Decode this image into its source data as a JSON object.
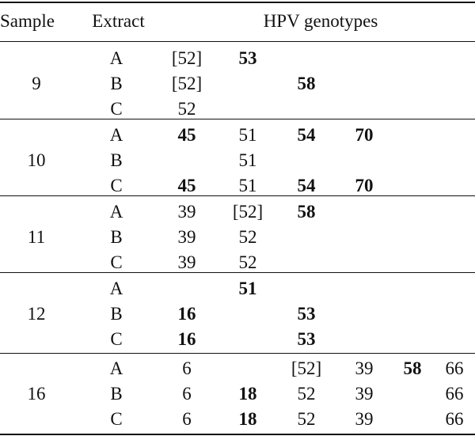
{
  "header": {
    "sample": "Sample",
    "extract": "Extract",
    "genotypes": "HPV genotypes"
  },
  "groups": [
    {
      "sample": "9",
      "rows": [
        {
          "extract": "A",
          "cells": [
            {
              "v": "[52]",
              "bold": false
            },
            {
              "v": "53",
              "bold": true
            },
            {
              "v": "",
              "bold": false
            },
            {
              "v": "",
              "bold": false
            },
            {
              "v": "",
              "bold": false
            },
            {
              "v": "",
              "bold": false
            }
          ]
        },
        {
          "extract": "B",
          "cells": [
            {
              "v": "[52]",
              "bold": false
            },
            {
              "v": "",
              "bold": false
            },
            {
              "v": "58",
              "bold": true
            },
            {
              "v": "",
              "bold": false
            },
            {
              "v": "",
              "bold": false
            },
            {
              "v": "",
              "bold": false
            }
          ]
        },
        {
          "extract": "C",
          "cells": [
            {
              "v": "52",
              "bold": false
            },
            {
              "v": "",
              "bold": false
            },
            {
              "v": "",
              "bold": false
            },
            {
              "v": "",
              "bold": false
            },
            {
              "v": "",
              "bold": false
            },
            {
              "v": "",
              "bold": false
            }
          ]
        }
      ]
    },
    {
      "sample": "10",
      "rows": [
        {
          "extract": "A",
          "cells": [
            {
              "v": "45",
              "bold": true
            },
            {
              "v": "51",
              "bold": false
            },
            {
              "v": "54",
              "bold": true
            },
            {
              "v": "70",
              "bold": true
            },
            {
              "v": "",
              "bold": false
            },
            {
              "v": "",
              "bold": false
            }
          ]
        },
        {
          "extract": "B",
          "cells": [
            {
              "v": "",
              "bold": false
            },
            {
              "v": "51",
              "bold": false
            },
            {
              "v": "",
              "bold": false
            },
            {
              "v": "",
              "bold": false
            },
            {
              "v": "",
              "bold": false
            },
            {
              "v": "",
              "bold": false
            }
          ]
        },
        {
          "extract": "C",
          "cells": [
            {
              "v": "45",
              "bold": true
            },
            {
              "v": "51",
              "bold": false
            },
            {
              "v": "54",
              "bold": true
            },
            {
              "v": "70",
              "bold": true
            },
            {
              "v": "",
              "bold": false
            },
            {
              "v": "",
              "bold": false
            }
          ]
        }
      ]
    },
    {
      "sample": "11",
      "rows": [
        {
          "extract": "A",
          "cells": [
            {
              "v": "39",
              "bold": false
            },
            {
              "v": "[52]",
              "bold": false
            },
            {
              "v": "58",
              "bold": true
            },
            {
              "v": "",
              "bold": false
            },
            {
              "v": "",
              "bold": false
            },
            {
              "v": "",
              "bold": false
            }
          ]
        },
        {
          "extract": "B",
          "cells": [
            {
              "v": "39",
              "bold": false
            },
            {
              "v": "52",
              "bold": false
            },
            {
              "v": "",
              "bold": false
            },
            {
              "v": "",
              "bold": false
            },
            {
              "v": "",
              "bold": false
            },
            {
              "v": "",
              "bold": false
            }
          ]
        },
        {
          "extract": "C",
          "cells": [
            {
              "v": "39",
              "bold": false
            },
            {
              "v": "52",
              "bold": false
            },
            {
              "v": "",
              "bold": false
            },
            {
              "v": "",
              "bold": false
            },
            {
              "v": "",
              "bold": false
            },
            {
              "v": "",
              "bold": false
            }
          ]
        }
      ]
    },
    {
      "sample": "12",
      "rows": [
        {
          "extract": "A",
          "cells": [
            {
              "v": "",
              "bold": false
            },
            {
              "v": "51",
              "bold": true
            },
            {
              "v": "",
              "bold": false
            },
            {
              "v": "",
              "bold": false
            },
            {
              "v": "",
              "bold": false
            },
            {
              "v": "",
              "bold": false
            }
          ]
        },
        {
          "extract": "B",
          "cells": [
            {
              "v": "16",
              "bold": true
            },
            {
              "v": "",
              "bold": false
            },
            {
              "v": "53",
              "bold": true
            },
            {
              "v": "",
              "bold": false
            },
            {
              "v": "",
              "bold": false
            },
            {
              "v": "",
              "bold": false
            }
          ]
        },
        {
          "extract": "C",
          "cells": [
            {
              "v": "16",
              "bold": true
            },
            {
              "v": "",
              "bold": false
            },
            {
              "v": "53",
              "bold": true
            },
            {
              "v": "",
              "bold": false
            },
            {
              "v": "",
              "bold": false
            },
            {
              "v": "",
              "bold": false
            }
          ]
        }
      ]
    },
    {
      "sample": "16",
      "rows": [
        {
          "extract": "A",
          "cells": [
            {
              "v": "6",
              "bold": false
            },
            {
              "v": "",
              "bold": false
            },
            {
              "v": "[52]",
              "bold": false
            },
            {
              "v": "39",
              "bold": false
            },
            {
              "v": "58",
              "bold": true
            },
            {
              "v": "66",
              "bold": false
            }
          ]
        },
        {
          "extract": "B",
          "cells": [
            {
              "v": "6",
              "bold": false
            },
            {
              "v": "18",
              "bold": true
            },
            {
              "v": "52",
              "bold": false
            },
            {
              "v": "39",
              "bold": false
            },
            {
              "v": "",
              "bold": false
            },
            {
              "v": "66",
              "bold": false
            }
          ]
        },
        {
          "extract": "C",
          "cells": [
            {
              "v": "6",
              "bold": false
            },
            {
              "v": "18",
              "bold": true
            },
            {
              "v": "52",
              "bold": false
            },
            {
              "v": "39",
              "bold": false
            },
            {
              "v": "",
              "bold": false
            },
            {
              "v": "66",
              "bold": false
            }
          ]
        }
      ]
    }
  ]
}
